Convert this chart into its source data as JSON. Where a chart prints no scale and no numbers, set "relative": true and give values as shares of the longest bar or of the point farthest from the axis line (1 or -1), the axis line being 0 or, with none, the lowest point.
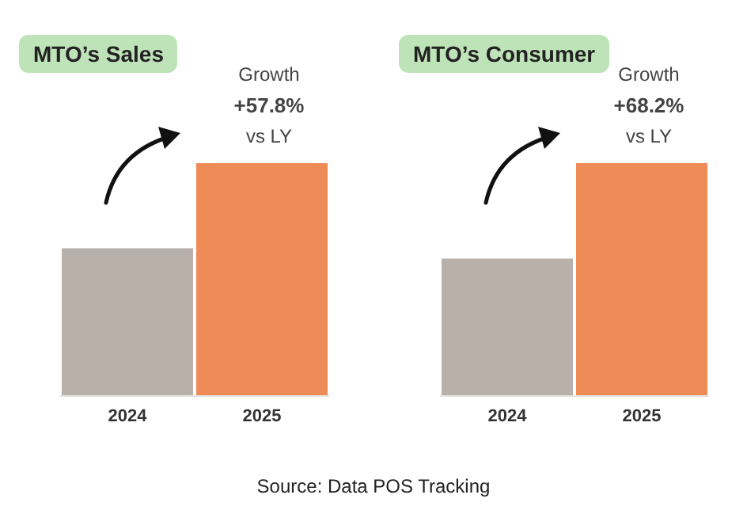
{
  "chart_data": [
    {
      "type": "bar",
      "title": "MTO’s Sales",
      "categories": [
        "2024",
        "2025"
      ],
      "values": [
        0.634,
        1
      ],
      "colors": [
        "#b8b0a9",
        "#ee8b57"
      ],
      "relative": true,
      "tick_labels": "x",
      "annotations": [
        "Growth",
        "+57.8%",
        "vs LY"
      ]
    },
    {
      "type": "bar",
      "title": "MTO’s Consumer",
      "categories": [
        "2024",
        "2025"
      ],
      "values": [
        0.59,
        1
      ],
      "colors": [
        "#b8b0a9",
        "#ee8b57"
      ],
      "relative": true,
      "tick_labels": "x",
      "annotations": [
        "Growth",
        "+68.2%",
        "vs LY",
        "Source: Data POS Tracking"
      ]
    }
  ]
}
